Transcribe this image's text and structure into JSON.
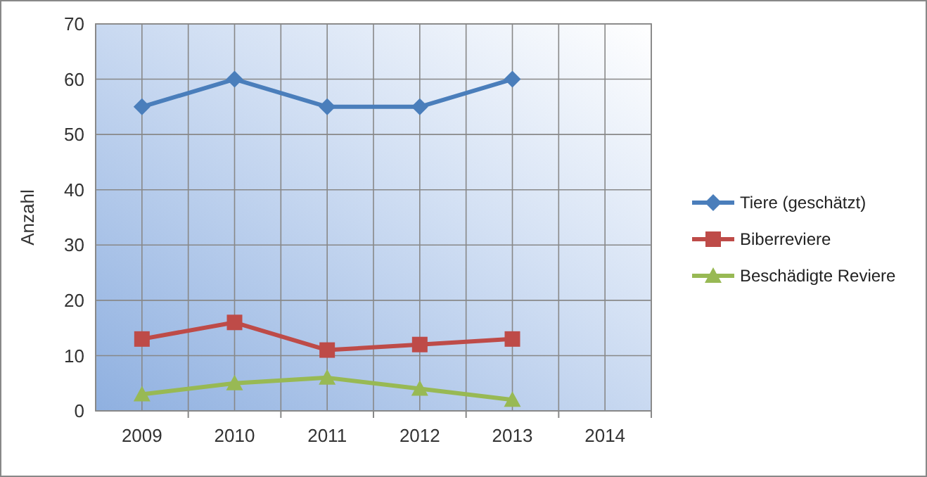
{
  "chart_data": {
    "type": "line",
    "ylabel": "Anzahl",
    "categories": [
      "2009",
      "2010",
      "2011",
      "2012",
      "2013",
      "2014"
    ],
    "ylim": [
      0,
      70
    ],
    "yticks": [
      0,
      10,
      20,
      30,
      40,
      50,
      60,
      70
    ],
    "grid": true,
    "legend": "right",
    "series": [
      {
        "name": "Tiere (geschätzt)",
        "color": "#4a7ebb",
        "marker": "diamond",
        "values": [
          55,
          60,
          55,
          55,
          60,
          null
        ]
      },
      {
        "name": "Biberreviere",
        "color": "#be4b48",
        "marker": "square",
        "values": [
          13,
          16,
          11,
          12,
          13,
          null
        ]
      },
      {
        "name": "Beschädigte Reviere",
        "color": "#98b954",
        "marker": "triangle",
        "values": [
          3,
          5,
          6,
          4,
          2,
          null
        ]
      }
    ]
  }
}
